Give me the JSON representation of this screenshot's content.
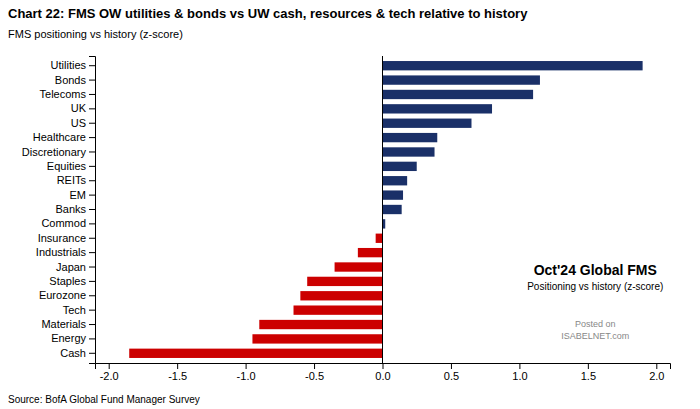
{
  "chart_data": {
    "type": "bar",
    "orientation": "horizontal",
    "title": "Chart 22: FMS OW utilities & bonds vs UW cash, resources & tech relative to history",
    "subtitle": "FMS positioning vs history (z-score)",
    "annotations": [
      "Oct'24 Global FMS",
      "Positioning vs history (z-score)",
      "Posted on",
      "ISABELNET.com"
    ],
    "source": "Source: BofA Global Fund Manager Survey",
    "categories": [
      "Utilities",
      "Bonds",
      "Telecoms",
      "UK",
      "US",
      "Healthcare",
      "Discretionary",
      "Equities",
      "REITs",
      "EM",
      "Banks",
      "Commod",
      "Insurance",
      "Industrials",
      "Japan",
      "Staples",
      "Eurozone",
      "Tech",
      "Materials",
      "Energy",
      "Cash"
    ],
    "values": [
      1.9,
      1.15,
      1.1,
      0.8,
      0.65,
      0.4,
      0.38,
      0.25,
      0.18,
      0.15,
      0.14,
      0.02,
      -0.05,
      -0.18,
      -0.35,
      -0.55,
      -0.6,
      -0.65,
      -0.9,
      -0.95,
      -1.85
    ],
    "colors": [
      "#1a3068",
      "#1a3068",
      "#1a3068",
      "#1a3068",
      "#1a3068",
      "#1a3068",
      "#1a3068",
      "#1a3068",
      "#1a3068",
      "#1a3068",
      "#1a3068",
      "#1a3068",
      "#cc0000",
      "#cc0000",
      "#cc0000",
      "#cc0000",
      "#cc0000",
      "#cc0000",
      "#cc0000",
      "#cc0000",
      "#cc0000"
    ],
    "xlim": [
      -2.1,
      2.1
    ],
    "xticks": [
      {
        "value": -2.0,
        "label": "-2.0"
      },
      -1.5,
      {
        "value": -1.0,
        "label": "-1.0"
      },
      -0.5,
      {
        "value": 0.0,
        "label": "0.0"
      },
      0.5,
      {
        "value": 1.0,
        "label": "1.0"
      },
      1.5,
      {
        "value": 2.0,
        "label": "2.0"
      }
    ],
    "grid": false
  }
}
